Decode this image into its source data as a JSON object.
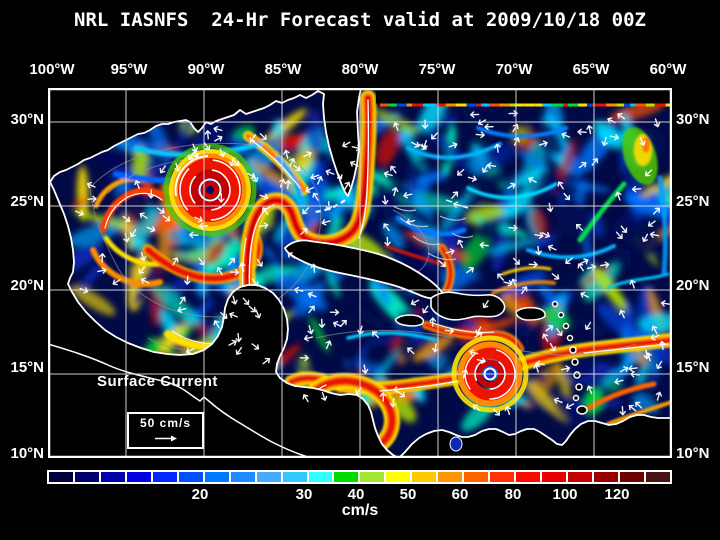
{
  "title": "NRL IASNFS  24-Hr Forecast valid at 2009/10/18 00Z",
  "axes": {
    "top_ticks": [
      "100°W",
      "95°W",
      "90°W",
      "85°W",
      "80°W",
      "75°W",
      "70°W",
      "65°W",
      "60°W"
    ],
    "left_ticks": [
      "30°N",
      "25°N",
      "20°N",
      "15°N",
      "10°N"
    ],
    "right_ticks": [
      "30°N",
      "25°N",
      "20°N",
      "15°N",
      "10°N"
    ]
  },
  "map_legend": {
    "title": "Surface Current",
    "scale_label": "50 cm/s"
  },
  "colorbar": {
    "unit_label": "cm/s",
    "tick_labels": [
      "20",
      "30",
      "40",
      "50",
      "60",
      "80",
      "100",
      "120"
    ]
  },
  "chart_data": {
    "type": "heatmap",
    "title": "NRL IASNFS 24-Hr Forecast valid at 2009/10/18 00Z",
    "model": "NRL IASNFS",
    "forecast": "24-Hr Forecast",
    "valid_time": "2009/10/18 00Z",
    "variable": "Surface Current speed",
    "units": "cm/s",
    "region": "Gulf of Mexico, Caribbean Sea and western North Atlantic (Intra-Americas Sea)",
    "lon_ticks_deg_west": [
      100,
      95,
      90,
      85,
      80,
      75,
      70,
      65,
      60
    ],
    "lat_ticks_deg_north": [
      30,
      25,
      20,
      15,
      10
    ],
    "grid": true,
    "reference_vector_cm_s": 50,
    "colorbar_tick_values": [
      20,
      30,
      40,
      50,
      60,
      80,
      100,
      120
    ],
    "colorbar_n_cells": 24,
    "colorbar_cell_colors": [
      "#000038",
      "#000070",
      "#0000A8",
      "#0000E0",
      "#0028FF",
      "#0050FF",
      "#0078FF",
      "#1E8CFF",
      "#46AAFF",
      "#32C8FF",
      "#2FFFFF",
      "#00DC00",
      "#A0E632",
      "#FFFF00",
      "#FFC800",
      "#FF9600",
      "#FF6400",
      "#FF3200",
      "#FF0A00",
      "#E60000",
      "#C30000",
      "#9B0000",
      "#700000",
      "#461414"
    ],
    "notable_features": [
      {
        "name": "anticyclonic Loop Current ring eddy, Gulf of Mexico",
        "approx_position": "90°W 25.5°N",
        "speed": ">120 cm/s"
      },
      {
        "name": "Loop Current / Florida Current jet through Yucatan Channel and Florida Straits northward along 80°W",
        "speed": ">120 cm/s"
      },
      {
        "name": "intense eddy in central Caribbean",
        "approx_position": "73.5°W 15.5°N",
        "speed": ">120 cm/s"
      },
      {
        "name": "westward Caribbean Current band along 13–17°N",
        "speed": "60-120 cm/s"
      },
      {
        "name": "Panama–Colombia gyre, SW Caribbean",
        "approx_position": "79°W 11°N"
      }
    ]
  }
}
